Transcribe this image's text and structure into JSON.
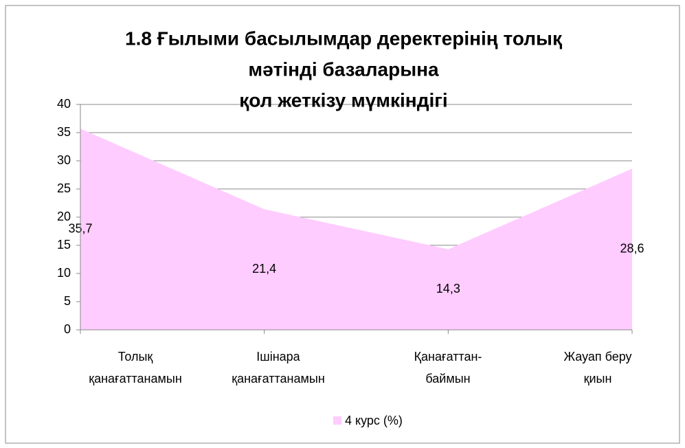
{
  "chart_data": {
    "type": "area",
    "title": [
      "1.8 Ғылыми басылымдар деректерінің толық",
      "мәтінді базаларына",
      "қол жеткізу мүмкіндігі"
    ],
    "categories": [
      [
        "Толық",
        "қанағаттанамын"
      ],
      [
        "Ішінара",
        "қанағаттанамын"
      ],
      [
        "Қанағаттан-",
        "баймын"
      ],
      [
        "Жауап беру",
        "қиын"
      ]
    ],
    "series": [
      {
        "name": "4 курс (%)",
        "color": "#ffccff",
        "values": [
          35.7,
          21.4,
          14.3,
          28.6
        ],
        "value_labels": [
          "35,7",
          "21,4",
          "14,3",
          "28,6"
        ]
      }
    ],
    "ylim": [
      0,
      40
    ],
    "yticks": [
      0,
      5,
      10,
      15,
      20,
      25,
      30,
      35,
      40
    ],
    "grid": true,
    "legend": "bottom"
  }
}
